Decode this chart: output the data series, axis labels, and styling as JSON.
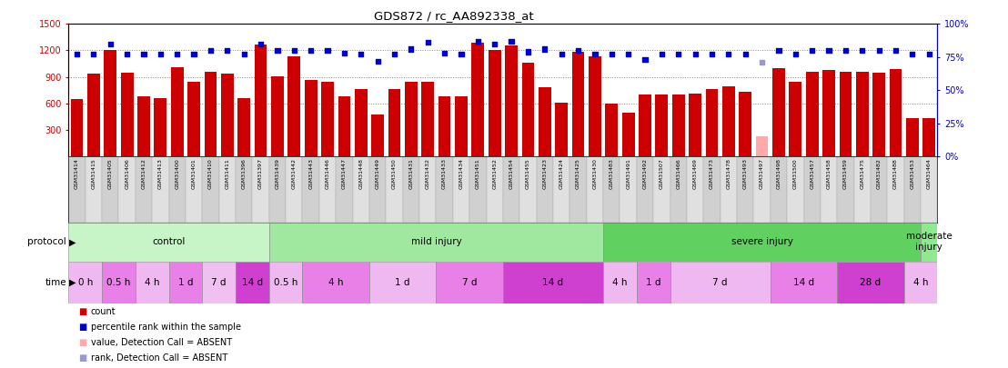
{
  "title": "GDS872 / rc_AA892338_at",
  "samples": [
    "GSM31414",
    "GSM31415",
    "GSM31405",
    "GSM31406",
    "GSM31412",
    "GSM31413",
    "GSM31400",
    "GSM31401",
    "GSM31410",
    "GSM31411",
    "GSM31396",
    "GSM31397",
    "GSM31439",
    "GSM31442",
    "GSM31443",
    "GSM31446",
    "GSM31447",
    "GSM31448",
    "GSM31449",
    "GSM31450",
    "GSM31431",
    "GSM31432",
    "GSM31433",
    "GSM31434",
    "GSM31451",
    "GSM31452",
    "GSM31454",
    "GSM31455",
    "GSM31423",
    "GSM31424",
    "GSM31425",
    "GSM31430",
    "GSM31483",
    "GSM31491",
    "GSM31492",
    "GSM31507",
    "GSM31466",
    "GSM31469",
    "GSM31473",
    "GSM31478",
    "GSM31493",
    "GSM31497",
    "GSM31498",
    "GSM31500",
    "GSM31457",
    "GSM31458",
    "GSM31459",
    "GSM31475",
    "GSM31482",
    "GSM31488",
    "GSM31453",
    "GSM31464"
  ],
  "counts": [
    650,
    940,
    1210,
    950,
    680,
    660,
    1010,
    840,
    960,
    940,
    660,
    1270,
    905,
    1130,
    870,
    840,
    680,
    760,
    470,
    760,
    845,
    845,
    680,
    680,
    1290,
    1200,
    1260,
    1060,
    780,
    610,
    1180,
    1130,
    600,
    490,
    700,
    700,
    700,
    710,
    760,
    790,
    730,
    230,
    1000,
    840,
    960,
    980,
    960,
    960,
    950,
    990,
    430,
    430
  ],
  "ranks_pct": [
    77,
    77,
    85,
    77,
    77,
    77,
    77,
    77,
    80,
    80,
    77,
    85,
    80,
    80,
    80,
    80,
    78,
    77,
    72,
    77,
    81,
    86,
    78,
    77,
    87,
    85,
    87,
    79,
    81,
    77,
    80,
    77,
    77,
    77,
    73,
    77,
    77,
    77,
    77,
    77,
    77,
    71,
    80,
    77,
    80,
    80,
    80,
    80,
    80,
    80,
    77,
    77
  ],
  "absent_bars": [
    41
  ],
  "absent_ranks": [
    41
  ],
  "protocols": [
    {
      "label": "control",
      "start": 0,
      "end": 12,
      "color": "#c8f5c8"
    },
    {
      "label": "mild injury",
      "start": 12,
      "end": 32,
      "color": "#a0e8a0"
    },
    {
      "label": "severe injury",
      "start": 32,
      "end": 51,
      "color": "#60d060"
    },
    {
      "label": "moderate\ninjury",
      "start": 51,
      "end": 52,
      "color": "#90e890"
    }
  ],
  "times": [
    {
      "label": "0 h",
      "start": 0,
      "end": 2,
      "color": "#f0b8f0"
    },
    {
      "label": "0.5 h",
      "start": 2,
      "end": 4,
      "color": "#e880e8"
    },
    {
      "label": "4 h",
      "start": 4,
      "end": 6,
      "color": "#f0b8f0"
    },
    {
      "label": "1 d",
      "start": 6,
      "end": 8,
      "color": "#e880e8"
    },
    {
      "label": "7 d",
      "start": 8,
      "end": 10,
      "color": "#f0c0f0"
    },
    {
      "label": "14 d",
      "start": 10,
      "end": 12,
      "color": "#d040d0"
    },
    {
      "label": "0.5 h",
      "start": 12,
      "end": 14,
      "color": "#f0b8f0"
    },
    {
      "label": "4 h",
      "start": 14,
      "end": 18,
      "color": "#e880e8"
    },
    {
      "label": "1 d",
      "start": 18,
      "end": 22,
      "color": "#f0b8f0"
    },
    {
      "label": "7 d",
      "start": 22,
      "end": 26,
      "color": "#e880e8"
    },
    {
      "label": "14 d",
      "start": 26,
      "end": 32,
      "color": "#d040d0"
    },
    {
      "label": "4 h",
      "start": 32,
      "end": 34,
      "color": "#f0b8f0"
    },
    {
      "label": "1 d",
      "start": 34,
      "end": 36,
      "color": "#e880e8"
    },
    {
      "label": "7 d",
      "start": 36,
      "end": 42,
      "color": "#f0b8f0"
    },
    {
      "label": "14 d",
      "start": 42,
      "end": 46,
      "color": "#e880e8"
    },
    {
      "label": "28 d",
      "start": 46,
      "end": 50,
      "color": "#d040d0"
    },
    {
      "label": "4 h",
      "start": 50,
      "end": 52,
      "color": "#f0b8f0"
    }
  ],
  "bar_color": "#cc0000",
  "absent_bar_color": "#ffaaaa",
  "rank_color": "#0000cc",
  "absent_rank_color": "#9999cc",
  "ylim_left": [
    0,
    1500
  ],
  "ylim_right": [
    0,
    100
  ],
  "yticks_left": [
    300,
    600,
    900,
    1200,
    1500
  ],
  "yticks_right": [
    0,
    25,
    50,
    75,
    100
  ],
  "dotted_lines": [
    600,
    900,
    1200
  ]
}
